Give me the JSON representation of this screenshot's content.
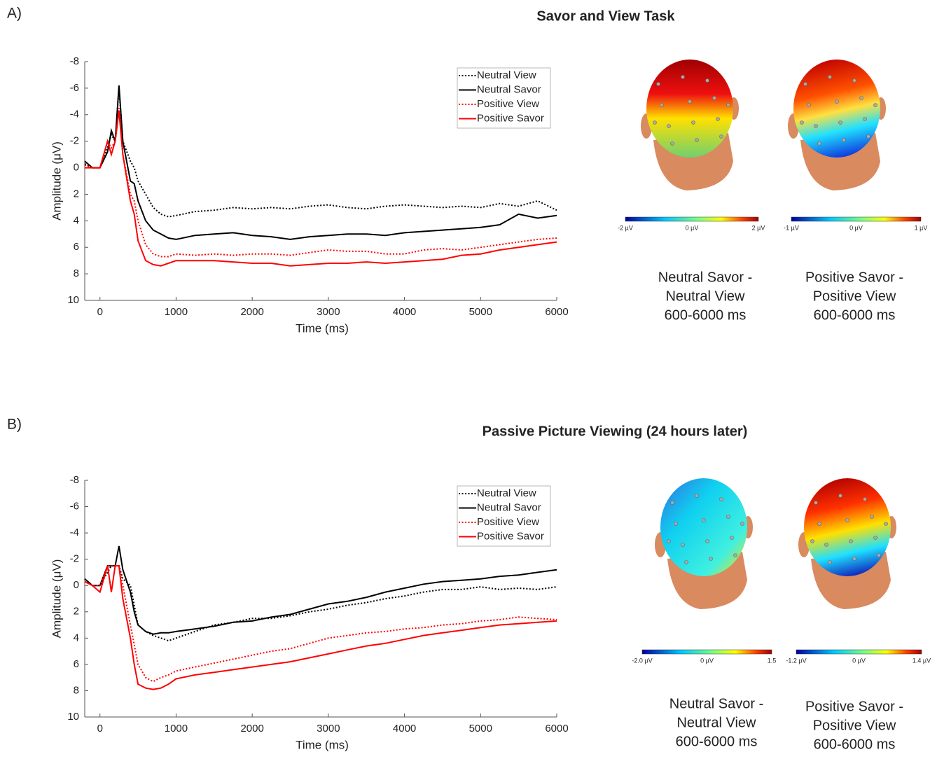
{
  "chart_data": [
    {
      "type": "line",
      "panel_label": "A)",
      "title": "Savor and View Task",
      "x_label": "Time (ms)",
      "y_label": "Amplitude (μV)",
      "x": [
        -200,
        -100,
        0,
        100,
        150,
        200,
        250,
        300,
        400,
        450,
        500,
        600,
        700,
        800,
        900,
        1000,
        1250,
        1500,
        1750,
        2000,
        2250,
        2500,
        2750,
        3000,
        3250,
        3500,
        3750,
        4000,
        4250,
        4500,
        4750,
        5000,
        5250,
        5500,
        5750,
        6000
      ],
      "xlim": [
        -200,
        6000
      ],
      "xticks": [
        0,
        1000,
        2000,
        3000,
        4000,
        5000,
        6000
      ],
      "ylim": [
        -8,
        10
      ],
      "yticks": [
        -8,
        -6,
        -4,
        -2,
        0,
        2,
        4,
        6,
        8,
        10
      ],
      "y_inverted": true,
      "legend": "upper right",
      "series": [
        {
          "name": "Neutral View",
          "color": "#000000",
          "style": "dotted",
          "values": [
            -0.3,
            0,
            0,
            -1.5,
            -2.5,
            -2,
            -6,
            -2,
            -0.5,
            0,
            1,
            2,
            3,
            3.5,
            3.7,
            3.6,
            3.3,
            3.2,
            3.0,
            3.1,
            3.0,
            3.1,
            2.9,
            2.8,
            3.0,
            3.1,
            2.9,
            2.8,
            2.9,
            3.0,
            2.9,
            3.0,
            2.7,
            2.9,
            2.5,
            3.2
          ]
        },
        {
          "name": "Neutral Savor",
          "color": "#000000",
          "style": "solid",
          "values": [
            -0.5,
            0,
            0,
            -1.2,
            -2.8,
            -2,
            -6.2,
            -2,
            1,
            1.2,
            2.5,
            4,
            4.7,
            5,
            5.3,
            5.4,
            5.1,
            5.0,
            4.9,
            5.1,
            5.2,
            5.4,
            5.2,
            5.1,
            5.0,
            5.0,
            5.1,
            4.9,
            4.8,
            4.7,
            4.6,
            4.5,
            4.3,
            3.5,
            3.8,
            3.6
          ]
        },
        {
          "name": "Positive View",
          "color": "#ff0000",
          "style": "dotted",
          "values": [
            -0.2,
            0,
            0,
            -2,
            -1.5,
            -2,
            -4.5,
            -1,
            2,
            2.5,
            4,
            5.8,
            6.5,
            6.7,
            6.7,
            6.5,
            6.6,
            6.5,
            6.6,
            6.5,
            6.5,
            6.6,
            6.4,
            6.2,
            6.3,
            6.3,
            6.5,
            6.5,
            6.2,
            6.1,
            6.2,
            6.0,
            5.8,
            5.6,
            5.4,
            5.3
          ]
        },
        {
          "name": "Positive Savor",
          "color": "#ff0000",
          "style": "solid",
          "values": [
            0,
            0,
            0,
            -2,
            -1,
            -2,
            -4.3,
            -1,
            2.5,
            3.5,
            5.5,
            7,
            7.3,
            7.4,
            7.2,
            7.0,
            7.0,
            7.0,
            7.1,
            7.2,
            7.2,
            7.4,
            7.3,
            7.2,
            7.2,
            7.1,
            7.2,
            7.1,
            7.0,
            6.9,
            6.6,
            6.5,
            6.2,
            6.0,
            5.8,
            5.6
          ]
        }
      ],
      "topomaps": [
        {
          "caption": [
            "Neutral Savor -",
            "Neutral View",
            "600-6000 ms"
          ],
          "colorbar_labels": [
            "-2 µV",
            "0 µV",
            "2 µV"
          ]
        },
        {
          "caption": [
            "Positive Savor -",
            "Positive View",
            "600-6000 ms"
          ],
          "colorbar_labels": [
            "-1 µV",
            "0 µV",
            "1 µV"
          ]
        }
      ]
    },
    {
      "type": "line",
      "panel_label": "B)",
      "title": "Passive Picture Viewing (24 hours later)",
      "x_label": "Time (ms)",
      "y_label": "Amplitude (μV)",
      "x": [
        -200,
        -100,
        0,
        100,
        150,
        200,
        250,
        300,
        400,
        450,
        500,
        600,
        700,
        800,
        900,
        1000,
        1250,
        1500,
        1750,
        2000,
        2250,
        2500,
        2750,
        3000,
        3250,
        3500,
        3750,
        4000,
        4250,
        4500,
        4750,
        5000,
        5250,
        5500,
        5750,
        6000
      ],
      "xlim": [
        -200,
        6000
      ],
      "xticks": [
        0,
        1000,
        2000,
        3000,
        4000,
        5000,
        6000
      ],
      "ylim": [
        -8,
        10
      ],
      "yticks": [
        -8,
        -6,
        -4,
        -2,
        0,
        2,
        4,
        6,
        8,
        10
      ],
      "y_inverted": true,
      "legend": "upper right",
      "series": [
        {
          "name": "Neutral View",
          "color": "#000000",
          "style": "dotted",
          "values": [
            -0.5,
            0,
            0,
            -1,
            -1.5,
            -1.5,
            -1.5,
            -0.5,
            0,
            1.5,
            3,
            3.5,
            3.8,
            4,
            4.2,
            4.0,
            3.5,
            3.0,
            2.8,
            2.5,
            2.5,
            2.3,
            2.0,
            1.8,
            1.5,
            1.3,
            1.0,
            0.8,
            0.5,
            0.3,
            0.3,
            0.1,
            0.3,
            0.2,
            0.3,
            0.1
          ]
        },
        {
          "name": "Neutral Savor",
          "color": "#000000",
          "style": "solid",
          "values": [
            -0.5,
            0,
            0,
            -1.5,
            -1.5,
            -1.5,
            -3,
            -1.2,
            0.5,
            2,
            3,
            3.5,
            3.7,
            3.6,
            3.6,
            3.5,
            3.3,
            3.1,
            2.8,
            2.7,
            2.4,
            2.2,
            1.8,
            1.4,
            1.2,
            0.9,
            0.5,
            0.2,
            -0.1,
            -0.3,
            -0.4,
            -0.5,
            -0.7,
            -0.8,
            -1.0,
            -1.2
          ]
        },
        {
          "name": "Positive View",
          "color": "#ff0000",
          "style": "dotted",
          "values": [
            -0.3,
            0,
            0,
            -1.5,
            -1.5,
            -1.5,
            -1.5,
            0,
            3,
            4.5,
            6,
            7,
            7.3,
            7,
            6.8,
            6.5,
            6.2,
            5.9,
            5.6,
            5.3,
            5.0,
            4.8,
            4.4,
            4.0,
            3.8,
            3.6,
            3.5,
            3.3,
            3.2,
            3.0,
            2.9,
            2.7,
            2.6,
            2.4,
            2.5,
            2.6
          ]
        },
        {
          "name": "Positive Savor",
          "color": "#ff0000",
          "style": "solid",
          "values": [
            -0.3,
            0,
            0.5,
            -1.5,
            0.5,
            -1.5,
            -1.5,
            1,
            4,
            6,
            7.5,
            7.8,
            7.9,
            7.8,
            7.5,
            7.1,
            6.8,
            6.6,
            6.4,
            6.2,
            6.0,
            5.8,
            5.5,
            5.2,
            4.9,
            4.6,
            4.4,
            4.1,
            3.8,
            3.6,
            3.4,
            3.2,
            3.0,
            2.9,
            2.8,
            2.7
          ]
        }
      ],
      "topomaps": [
        {
          "caption": [
            "Neutral Savor -",
            "Neutral View",
            "600-6000 ms"
          ],
          "colorbar_labels": [
            "-2.0 µV",
            "0 µV",
            "1.5"
          ]
        },
        {
          "caption": [
            "Positive Savor -",
            "Positive View",
            "600-6000 ms"
          ],
          "colorbar_labels": [
            "-1.2 µV",
            "0 µV",
            "1.4 µV"
          ]
        }
      ]
    }
  ]
}
